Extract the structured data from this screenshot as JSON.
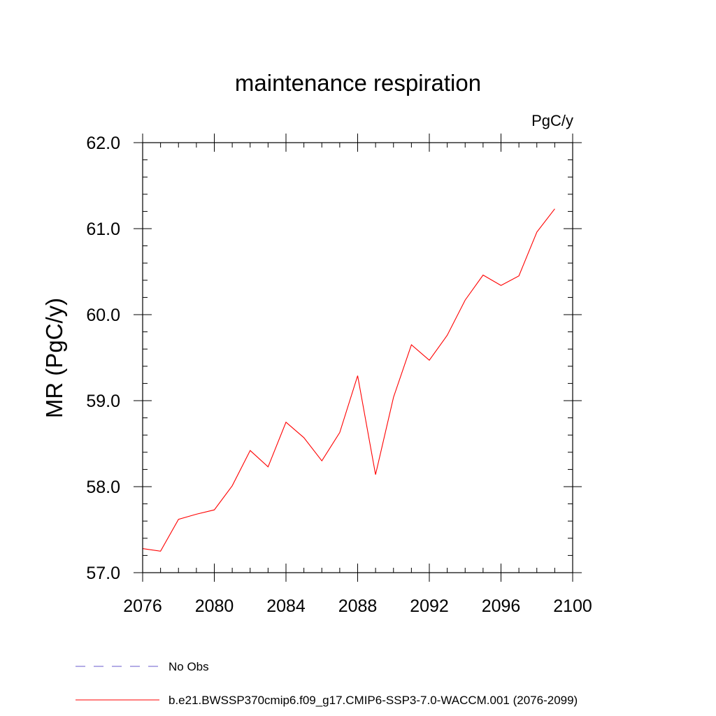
{
  "chart_data": {
    "type": "line",
    "title": "maintenance respiration",
    "units": "PgC/y",
    "xlabel": "",
    "ylabel": "MR  (PgC/y)",
    "xlim": [
      2076,
      2100
    ],
    "ylim": [
      57.0,
      62.0
    ],
    "x_major_ticks": [
      2076,
      2080,
      2084,
      2088,
      2092,
      2096,
      2100
    ],
    "x_tick_labels": [
      "2076",
      "2080",
      "2084",
      "2088",
      "2092",
      "2096",
      "2100"
    ],
    "y_major_ticks": [
      57.0,
      58.0,
      59.0,
      60.0,
      61.0,
      62.0
    ],
    "y_tick_labels": [
      "57.0",
      "58.0",
      "59.0",
      "60.0",
      "61.0",
      "62.0"
    ],
    "y_minor_step": 0.2,
    "x_minor_step": 1,
    "series": [
      {
        "name": "b.e21.BWSSP370cmip6.f09_g17.CMIP6-SSP3-7.0-WACCM.001 (2076-2099)",
        "color": "#ff0000",
        "x": [
          2076,
          2077,
          2078,
          2079,
          2080,
          2081,
          2082,
          2083,
          2084,
          2085,
          2086,
          2087,
          2088,
          2089,
          2090,
          2091,
          2092,
          2093,
          2094,
          2095,
          2096,
          2097,
          2098,
          2099
        ],
        "values": [
          57.28,
          57.25,
          57.62,
          57.68,
          57.73,
          58.01,
          58.42,
          58.23,
          58.75,
          58.57,
          58.3,
          58.63,
          59.29,
          58.14,
          59.04,
          59.65,
          59.47,
          59.76,
          60.17,
          60.46,
          60.34,
          60.45,
          60.96,
          61.23
        ]
      }
    ],
    "legend": [
      {
        "label": "No Obs",
        "color": "#6a5acd",
        "style": "dashed"
      },
      {
        "label": "b.e21.BWSSP370cmip6.f09_g17.CMIP6-SSP3-7.0-WACCM.001 (2076-2099)",
        "color": "#ff0000",
        "style": "solid"
      }
    ],
    "legend_position": "bottom-left"
  }
}
